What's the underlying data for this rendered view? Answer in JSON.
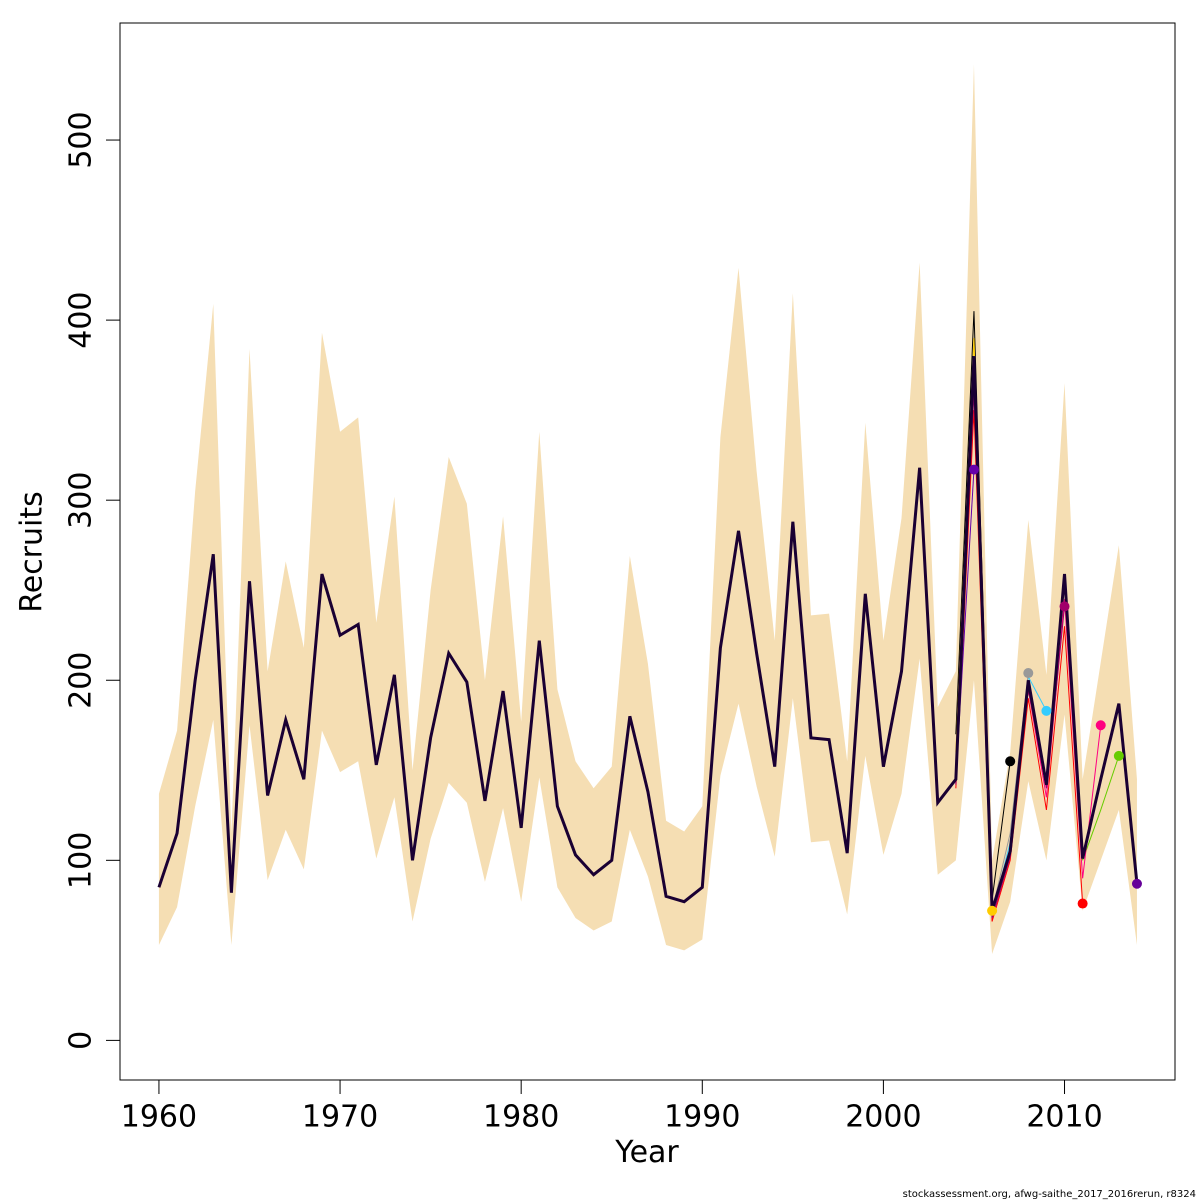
{
  "chart_data": {
    "type": "line",
    "xlabel": "Year",
    "ylabel": "Recruits",
    "footer": "stockassessment.org, afwg-saithe_2017_2016rerun, r8324",
    "xlim": [
      1957.85,
      2016.1
    ],
    "ylim": [
      -22,
      565
    ],
    "xticks": [
      1960,
      1970,
      1980,
      1990,
      2000,
      2010
    ],
    "yticks": [
      0,
      100,
      200,
      300,
      400,
      500
    ],
    "x": [
      1960,
      1961,
      1962,
      1963,
      1964,
      1965,
      1966,
      1967,
      1968,
      1969,
      1970,
      1971,
      1972,
      1973,
      1974,
      1975,
      1976,
      1977,
      1978,
      1979,
      1980,
      1981,
      1982,
      1983,
      1984,
      1985,
      1986,
      1987,
      1988,
      1989,
      1990,
      1991,
      1992,
      1993,
      1994,
      1995,
      1996,
      1997,
      1998,
      1999,
      2000,
      2001,
      2002,
      2003,
      2004,
      2005,
      2006,
      2007,
      2008,
      2009,
      2010,
      2011,
      2012,
      2013,
      2014
    ],
    "values": [
      85,
      115,
      200,
      270,
      82,
      255,
      136,
      178,
      145,
      259,
      225,
      231,
      153,
      203,
      100,
      168,
      215,
      199,
      133,
      194,
      118,
      222,
      130,
      103,
      92,
      100,
      180,
      138,
      80,
      77,
      85,
      218,
      283,
      215,
      152,
      288,
      168,
      167,
      104,
      248,
      152,
      205,
      318,
      132,
      145,
      380,
      72,
      105,
      200,
      142,
      259,
      101,
      145,
      187,
      87
    ],
    "color": "#1a0033",
    "point_color": "#660099",
    "band": {
      "color": "#f5deb3",
      "upper": [
        137,
        172,
        305,
        409,
        115,
        384,
        205,
        266,
        218,
        393,
        338,
        346,
        232,
        302,
        150,
        250,
        324,
        298,
        200,
        291,
        177,
        338,
        195,
        155,
        140,
        152,
        269,
        209,
        122,
        116,
        130,
        335,
        429,
        316,
        222,
        415,
        236,
        237,
        155,
        343,
        222,
        290,
        432,
        185,
        205,
        542,
        100,
        160,
        289,
        203,
        365,
        145,
        210,
        275,
        145
      ],
      "lower": [
        53,
        74,
        130,
        178,
        53,
        175,
        89,
        117,
        95,
        172,
        149,
        155,
        101,
        135,
        66,
        112,
        143,
        132,
        88,
        129,
        77,
        146,
        85,
        68,
        61,
        66,
        117,
        91,
        53,
        50,
        56,
        147,
        187,
        141,
        102,
        190,
        110,
        111,
        70,
        158,
        103,
        137,
        212,
        92,
        100,
        200,
        48,
        77,
        144,
        100,
        181,
        72,
        100,
        128,
        53
      ]
    },
    "series": [
      {
        "color": "#66cc00",
        "x": [
          2004,
          2005,
          2006,
          2007,
          2008,
          2009,
          2010,
          2011,
          2012,
          2013
        ],
        "values": [
          145,
          378,
          72,
          105,
          200,
          142,
          255,
          100,
          128,
          158
        ]
      },
      {
        "color": "#ff0080",
        "x": [
          2004,
          2005,
          2006,
          2007,
          2008,
          2009,
          2010,
          2011,
          2012
        ],
        "values": [
          142,
          365,
          68,
          102,
          195,
          135,
          245,
          90,
          175
        ]
      },
      {
        "color": "#ff0000",
        "x": [
          2004,
          2005,
          2006,
          2007,
          2008,
          2009,
          2010,
          2011
        ],
        "values": [
          140,
          350,
          66,
          100,
          190,
          128,
          230,
          76
        ]
      },
      {
        "color": "#a0006a",
        "x": [
          2004,
          2005,
          2006,
          2007,
          2008,
          2009,
          2010
        ],
        "values": [
          142,
          360,
          68,
          102,
          195,
          140,
          241
        ]
      },
      {
        "color": "#33ccff",
        "x": [
          2004,
          2005,
          2006,
          2007,
          2008,
          2009
        ],
        "values": [
          150,
          370,
          70,
          110,
          202,
          183
        ]
      },
      {
        "color": "#999999",
        "x": [
          2004,
          2005,
          2006,
          2007,
          2008
        ],
        "values": [
          155,
          375,
          72,
          115,
          204
        ]
      },
      {
        "color": "#000000",
        "x": [
          2004,
          2005,
          2006,
          2007
        ],
        "values": [
          170,
          405,
          78,
          155
        ]
      },
      {
        "color": "#ffcc00",
        "x": [
          2004,
          2005,
          2006
        ],
        "values": [
          160,
          390,
          72
        ]
      },
      {
        "color": "#6600aa",
        "x": [
          2004,
          2005
        ],
        "values": [
          145,
          317
        ]
      }
    ]
  }
}
